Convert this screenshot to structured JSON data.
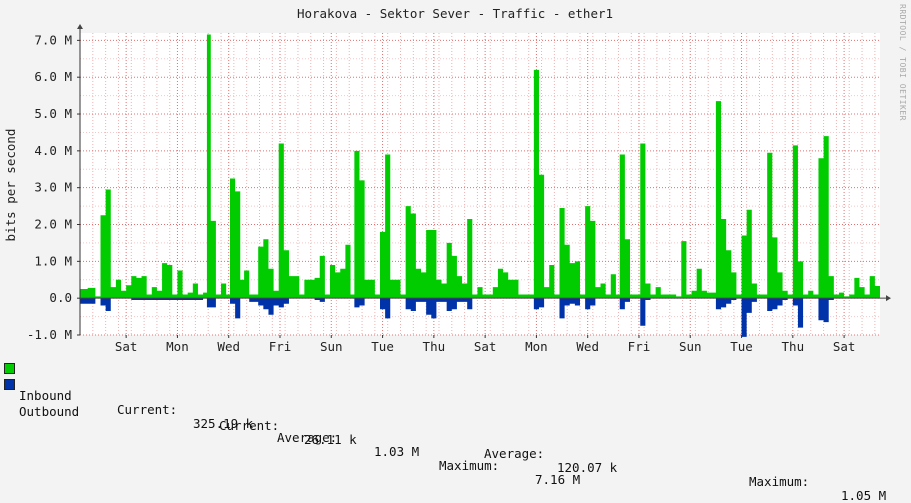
{
  "watermark": "RRDTOOL / TOBI OETIKER",
  "legend": {
    "inbound": {
      "name": "Inbound",
      "color": "#00cc00",
      "current_label": "Current:",
      "current": "325.19 k",
      "average_label": "Average:",
      "average": "1.03 M",
      "maximum_label": "Maximum:",
      "maximum": "7.16 M"
    },
    "outbound": {
      "name": "Outbound",
      "color": "#0033aa",
      "current_label": "Current:",
      "current": "26.11 k",
      "average_label": "Average:",
      "average": "120.07 k",
      "maximum_label": "Maximum:",
      "maximum": "1.05 M"
    }
  },
  "chart_data": {
    "type": "area",
    "title": "Horakova - Sektor Sever - Traffic - ether1",
    "ylabel": "bits per second",
    "xlabel": "",
    "ylim": [
      -1.0,
      7.2
    ],
    "yticks": [
      -1.0,
      0.0,
      1.0,
      2.0,
      3.0,
      4.0,
      5.0,
      6.0,
      7.0
    ],
    "ytick_labels": [
      "-1.0 M",
      "0.0",
      "1.0 M",
      "2.0 M",
      "3.0 M",
      "4.0 M",
      "5.0 M",
      "6.0 M",
      "7.0 M"
    ],
    "x_tick_labels": [
      "Sat",
      "Mon",
      "Wed",
      "Fri",
      "Sun",
      "Tue",
      "Thu",
      "Sat",
      "Mon",
      "Wed",
      "Fri",
      "Sun",
      "Tue",
      "Thu",
      "Sat"
    ],
    "x_tick_positions": [
      1.8,
      3.8,
      5.8,
      7.8,
      9.8,
      11.8,
      13.8,
      15.8,
      17.8,
      19.8,
      21.8,
      23.8,
      25.8,
      27.8,
      29.8
    ],
    "x_range": [
      0,
      31.2
    ],
    "grid": true,
    "series": [
      {
        "name": "Inbound",
        "color": "#00cc00",
        "points": [
          [
            0.0,
            0.25
          ],
          [
            0.3,
            0.28
          ],
          [
            0.6,
            0.05
          ],
          [
            0.8,
            2.25
          ],
          [
            1.0,
            2.95
          ],
          [
            1.2,
            0.3
          ],
          [
            1.4,
            0.5
          ],
          [
            1.6,
            0.2
          ],
          [
            1.8,
            0.35
          ],
          [
            2.0,
            0.6
          ],
          [
            2.2,
            0.55
          ],
          [
            2.4,
            0.6
          ],
          [
            2.6,
            0.1
          ],
          [
            2.8,
            0.3
          ],
          [
            3.0,
            0.2
          ],
          [
            3.2,
            0.95
          ],
          [
            3.4,
            0.9
          ],
          [
            3.6,
            0.1
          ],
          [
            3.8,
            0.75
          ],
          [
            4.0,
            0.1
          ],
          [
            4.2,
            0.15
          ],
          [
            4.4,
            0.4
          ],
          [
            4.6,
            0.1
          ],
          [
            4.8,
            0.15
          ],
          [
            4.95,
            7.16
          ],
          [
            5.1,
            2.1
          ],
          [
            5.3,
            0.1
          ],
          [
            5.5,
            0.4
          ],
          [
            5.7,
            0.1
          ],
          [
            5.85,
            3.25
          ],
          [
            6.05,
            2.9
          ],
          [
            6.25,
            0.5
          ],
          [
            6.4,
            0.75
          ],
          [
            6.6,
            0.1
          ],
          [
            6.8,
            0.1
          ],
          [
            6.95,
            1.4
          ],
          [
            7.15,
            1.6
          ],
          [
            7.35,
            0.8
          ],
          [
            7.55,
            0.2
          ],
          [
            7.75,
            4.2
          ],
          [
            7.95,
            1.3
          ],
          [
            8.15,
            0.6
          ],
          [
            8.35,
            0.6
          ],
          [
            8.55,
            0.1
          ],
          [
            8.75,
            0.5
          ],
          [
            8.95,
            0.5
          ],
          [
            9.15,
            0.55
          ],
          [
            9.35,
            1.15
          ],
          [
            9.55,
            0.1
          ],
          [
            9.75,
            0.9
          ],
          [
            9.95,
            0.7
          ],
          [
            10.15,
            0.8
          ],
          [
            10.35,
            1.45
          ],
          [
            10.55,
            0.1
          ],
          [
            10.7,
            4.0
          ],
          [
            10.9,
            3.2
          ],
          [
            11.1,
            0.5
          ],
          [
            11.3,
            0.5
          ],
          [
            11.5,
            0.1
          ],
          [
            11.7,
            1.8
          ],
          [
            11.9,
            3.9
          ],
          [
            12.1,
            0.5
          ],
          [
            12.3,
            0.5
          ],
          [
            12.5,
            0.1
          ],
          [
            12.7,
            2.5
          ],
          [
            12.9,
            2.3
          ],
          [
            13.1,
            0.8
          ],
          [
            13.3,
            0.7
          ],
          [
            13.5,
            1.85
          ],
          [
            13.7,
            1.85
          ],
          [
            13.9,
            0.5
          ],
          [
            14.1,
            0.4
          ],
          [
            14.3,
            1.5
          ],
          [
            14.5,
            1.15
          ],
          [
            14.7,
            0.6
          ],
          [
            14.9,
            0.4
          ],
          [
            15.1,
            2.15
          ],
          [
            15.3,
            0.1
          ],
          [
            15.5,
            0.3
          ],
          [
            15.7,
            0.1
          ],
          [
            15.9,
            0.1
          ],
          [
            16.1,
            0.3
          ],
          [
            16.3,
            0.8
          ],
          [
            16.5,
            0.7
          ],
          [
            16.7,
            0.5
          ],
          [
            16.9,
            0.5
          ],
          [
            17.1,
            0.1
          ],
          [
            17.3,
            0.1
          ],
          [
            17.5,
            0.1
          ],
          [
            17.7,
            6.2
          ],
          [
            17.9,
            3.35
          ],
          [
            18.1,
            0.3
          ],
          [
            18.3,
            0.9
          ],
          [
            18.5,
            0.1
          ],
          [
            18.7,
            2.45
          ],
          [
            18.9,
            1.45
          ],
          [
            19.1,
            0.95
          ],
          [
            19.3,
            1.0
          ],
          [
            19.5,
            0.1
          ],
          [
            19.7,
            2.5
          ],
          [
            19.9,
            2.1
          ],
          [
            20.1,
            0.3
          ],
          [
            20.3,
            0.4
          ],
          [
            20.5,
            0.1
          ],
          [
            20.7,
            0.65
          ],
          [
            20.9,
            0.1
          ],
          [
            21.05,
            3.9
          ],
          [
            21.25,
            1.6
          ],
          [
            21.45,
            0.1
          ],
          [
            21.65,
            0.1
          ],
          [
            21.85,
            4.2
          ],
          [
            22.05,
            0.4
          ],
          [
            22.25,
            0.1
          ],
          [
            22.45,
            0.3
          ],
          [
            22.65,
            0.1
          ],
          [
            22.85,
            0.1
          ],
          [
            23.05,
            0.1
          ],
          [
            23.25,
            0.05
          ],
          [
            23.45,
            1.55
          ],
          [
            23.65,
            0.1
          ],
          [
            23.85,
            0.2
          ],
          [
            24.05,
            0.8
          ],
          [
            24.25,
            0.2
          ],
          [
            24.45,
            0.15
          ],
          [
            24.65,
            0.15
          ],
          [
            24.8,
            5.35
          ],
          [
            25.0,
            2.15
          ],
          [
            25.2,
            1.3
          ],
          [
            25.4,
            0.7
          ],
          [
            25.6,
            0.1
          ],
          [
            25.8,
            1.7
          ],
          [
            26.0,
            2.4
          ],
          [
            26.2,
            0.4
          ],
          [
            26.4,
            0.1
          ],
          [
            26.6,
            0.1
          ],
          [
            26.8,
            3.95
          ],
          [
            27.0,
            1.65
          ],
          [
            27.2,
            0.7
          ],
          [
            27.4,
            0.2
          ],
          [
            27.6,
            0.1
          ],
          [
            27.8,
            4.15
          ],
          [
            28.0,
            1.0
          ],
          [
            28.2,
            0.1
          ],
          [
            28.4,
            0.2
          ],
          [
            28.6,
            0.1
          ],
          [
            28.8,
            3.8
          ],
          [
            29.0,
            4.4
          ],
          [
            29.2,
            0.6
          ],
          [
            29.4,
            0.1
          ],
          [
            29.6,
            0.15
          ],
          [
            29.8,
            0.05
          ],
          [
            30.0,
            0.1
          ],
          [
            30.2,
            0.55
          ],
          [
            30.4,
            0.3
          ],
          [
            30.6,
            0.1
          ],
          [
            30.8,
            0.6
          ],
          [
            31.0,
            0.33
          ]
        ]
      },
      {
        "name": "Outbound",
        "color": "#0033aa",
        "points": [
          [
            0.0,
            -0.15
          ],
          [
            0.6,
            0.0
          ],
          [
            0.8,
            -0.2
          ],
          [
            1.0,
            -0.35
          ],
          [
            1.2,
            0.0
          ],
          [
            2.0,
            -0.05
          ],
          [
            2.4,
            -0.05
          ],
          [
            4.8,
            0.0
          ],
          [
            4.95,
            -0.25
          ],
          [
            5.1,
            -0.25
          ],
          [
            5.3,
            0.0
          ],
          [
            5.85,
            -0.15
          ],
          [
            6.05,
            -0.55
          ],
          [
            6.25,
            0.0
          ],
          [
            6.6,
            -0.1
          ],
          [
            6.95,
            -0.2
          ],
          [
            7.15,
            -0.3
          ],
          [
            7.35,
            -0.45
          ],
          [
            7.55,
            -0.2
          ],
          [
            7.75,
            -0.25
          ],
          [
            7.95,
            -0.15
          ],
          [
            8.15,
            0.0
          ],
          [
            9.15,
            -0.05
          ],
          [
            9.35,
            -0.1
          ],
          [
            9.55,
            0.0
          ],
          [
            10.7,
            -0.25
          ],
          [
            10.9,
            -0.2
          ],
          [
            11.1,
            0.0
          ],
          [
            11.7,
            -0.3
          ],
          [
            11.9,
            -0.55
          ],
          [
            12.1,
            0.0
          ],
          [
            12.7,
            -0.3
          ],
          [
            12.9,
            -0.35
          ],
          [
            13.1,
            -0.1
          ],
          [
            13.3,
            -0.1
          ],
          [
            13.5,
            -0.45
          ],
          [
            13.7,
            -0.55
          ],
          [
            13.9,
            -0.1
          ],
          [
            14.1,
            -0.1
          ],
          [
            14.3,
            -0.35
          ],
          [
            14.5,
            -0.3
          ],
          [
            14.7,
            -0.1
          ],
          [
            14.9,
            -0.1
          ],
          [
            15.1,
            -0.3
          ],
          [
            15.3,
            0.0
          ],
          [
            17.7,
            -0.3
          ],
          [
            17.9,
            -0.25
          ],
          [
            18.1,
            0.0
          ],
          [
            18.7,
            -0.55
          ],
          [
            18.9,
            -0.2
          ],
          [
            19.1,
            -0.15
          ],
          [
            19.3,
            -0.2
          ],
          [
            19.5,
            0.0
          ],
          [
            19.7,
            -0.3
          ],
          [
            19.9,
            -0.2
          ],
          [
            20.1,
            0.0
          ],
          [
            21.05,
            -0.3
          ],
          [
            21.25,
            -0.1
          ],
          [
            21.45,
            0.0
          ],
          [
            21.85,
            -0.75
          ],
          [
            22.05,
            -0.05
          ],
          [
            22.25,
            0.0
          ],
          [
            24.8,
            -0.3
          ],
          [
            25.0,
            -0.25
          ],
          [
            25.2,
            -0.15
          ],
          [
            25.4,
            -0.05
          ],
          [
            25.6,
            0.0
          ],
          [
            25.8,
            -1.05
          ],
          [
            26.0,
            -0.4
          ],
          [
            26.2,
            -0.1
          ],
          [
            26.4,
            0.0
          ],
          [
            26.8,
            -0.35
          ],
          [
            27.0,
            -0.3
          ],
          [
            27.2,
            -0.2
          ],
          [
            27.4,
            -0.05
          ],
          [
            27.6,
            0.0
          ],
          [
            27.8,
            -0.2
          ],
          [
            28.0,
            -0.8
          ],
          [
            28.2,
            0.0
          ],
          [
            28.8,
            -0.6
          ],
          [
            29.0,
            -0.65
          ],
          [
            29.2,
            -0.05
          ],
          [
            29.4,
            0.0
          ],
          [
            31.0,
            0.0
          ]
        ]
      }
    ]
  }
}
